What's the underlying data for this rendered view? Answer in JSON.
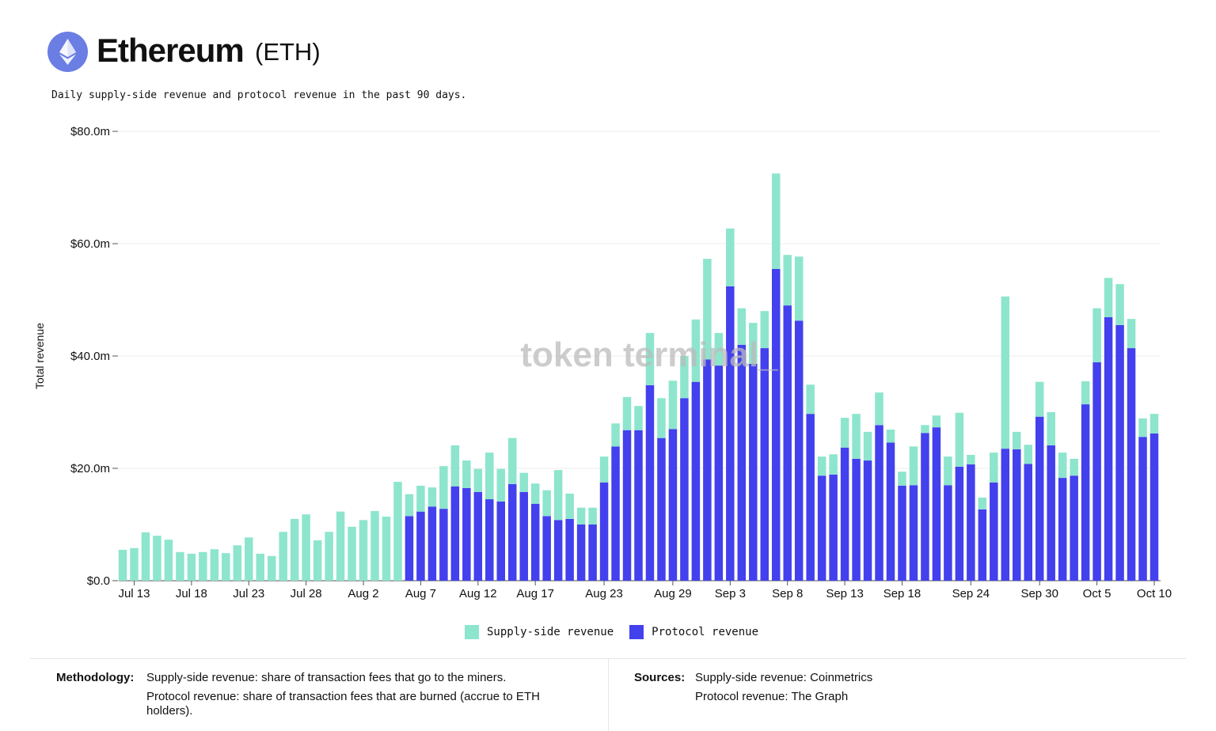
{
  "header": {
    "title": "Ethereum",
    "ticker": "(ETH)",
    "logo_icon": "ethereum-diamond-icon",
    "subtitle": "Daily supply-side revenue and protocol revenue in the past 90 days."
  },
  "watermark": "token terminal_",
  "colors": {
    "supply": "#8de5cd",
    "protocol": "#4340ee",
    "logo": "#6b7ee3"
  },
  "chart_data": {
    "type": "bar",
    "stacked": true,
    "ylabel": "Total revenue",
    "ylim": [
      0,
      80
    ],
    "yticks": [
      "$0.0",
      "$20.0m",
      "$40.0m",
      "$60.0m",
      "$80.0m"
    ],
    "ytick_values": [
      0,
      20,
      40,
      60,
      80
    ],
    "grid": true,
    "legend_position": "bottom",
    "xtick_labels": [
      "Jul 13",
      "Jul 18",
      "Jul 23",
      "Jul 28",
      "Aug 2",
      "Aug 7",
      "Aug 12",
      "Aug 17",
      "Aug 23",
      "Aug 29",
      "Sep 3",
      "Sep 8",
      "Sep 13",
      "Sep 18",
      "Sep 24",
      "Sep 30",
      "Oct 5",
      "Oct 10"
    ],
    "categories": [
      "Jul 12",
      "Jul 13",
      "Jul 14",
      "Jul 15",
      "Jul 16",
      "Jul 17",
      "Jul 18",
      "Jul 19",
      "Jul 20",
      "Jul 21",
      "Jul 22",
      "Jul 23",
      "Jul 24",
      "Jul 25",
      "Jul 26",
      "Jul 27",
      "Jul 28",
      "Jul 29",
      "Jul 30",
      "Jul 31",
      "Aug 1",
      "Aug 2",
      "Aug 3",
      "Aug 4",
      "Aug 5",
      "Aug 6",
      "Aug 7",
      "Aug 8",
      "Aug 9",
      "Aug 10",
      "Aug 11",
      "Aug 12",
      "Aug 13",
      "Aug 14",
      "Aug 15",
      "Aug 16",
      "Aug 17",
      "Aug 18",
      "Aug 19",
      "Aug 20",
      "Aug 21",
      "Aug 22",
      "Aug 23",
      "Aug 24",
      "Aug 25",
      "Aug 26",
      "Aug 27",
      "Aug 28",
      "Aug 29",
      "Aug 30",
      "Aug 31",
      "Sep 1",
      "Sep 2",
      "Sep 3",
      "Sep 4",
      "Sep 5",
      "Sep 6",
      "Sep 7",
      "Sep 8",
      "Sep 9",
      "Sep 10",
      "Sep 11",
      "Sep 12",
      "Sep 13",
      "Sep 14",
      "Sep 15",
      "Sep 16",
      "Sep 17",
      "Sep 18",
      "Sep 19",
      "Sep 20",
      "Sep 21",
      "Sep 22",
      "Sep 23",
      "Sep 24",
      "Sep 25",
      "Sep 26",
      "Sep 27",
      "Sep 28",
      "Sep 29",
      "Sep 30",
      "Oct 1",
      "Oct 2",
      "Oct 3",
      "Oct 4",
      "Oct 5",
      "Oct 6",
      "Oct 7",
      "Oct 8",
      "Oct 9",
      "Oct 10"
    ],
    "series": [
      {
        "name": "Protocol revenue",
        "values": [
          0,
          0,
          0,
          0,
          0,
          0,
          0,
          0,
          0,
          0,
          0,
          0,
          0,
          0,
          0,
          0,
          0,
          0,
          0,
          0,
          0,
          0,
          0,
          0,
          0,
          11.5,
          12.3,
          13.2,
          12.8,
          16.8,
          16.5,
          15.8,
          14.5,
          14.1,
          17.2,
          15.8,
          13.7,
          11.5,
          10.8,
          11.0,
          10.0,
          10.0,
          17.5,
          23.9,
          26.8,
          26.8,
          34.8,
          25.4,
          27.0,
          32.5,
          35.4,
          39.4,
          38.3,
          52.4,
          42.0,
          38.6,
          41.4,
          55.5,
          49.0,
          46.3,
          29.7,
          18.7,
          18.9,
          23.7,
          21.7,
          21.4,
          27.7,
          24.6,
          16.9,
          17.0,
          26.3,
          27.3,
          17.0,
          20.3,
          20.7,
          12.7,
          17.5,
          23.5,
          23.4,
          20.8,
          29.2,
          24.1,
          18.3,
          18.7,
          31.4,
          38.9,
          46.9,
          45.5,
          41.4,
          25.6,
          26.2
        ]
      },
      {
        "name": "Supply-side revenue",
        "values": [
          5.5,
          5.8,
          8.6,
          8.0,
          7.3,
          5.1,
          4.8,
          5.1,
          5.6,
          4.9,
          6.3,
          7.7,
          4.8,
          4.4,
          8.7,
          11.0,
          11.8,
          7.2,
          8.7,
          12.3,
          9.6,
          10.8,
          12.4,
          11.4,
          17.6,
          3.9,
          4.6,
          3.4,
          7.6,
          7.3,
          4.9,
          4.1,
          8.3,
          5.8,
          8.2,
          3.4,
          3.6,
          4.6,
          8.9,
          4.5,
          3.0,
          3.0,
          4.6,
          4.1,
          5.9,
          4.3,
          9.3,
          7.1,
          8.6,
          7.5,
          11.1,
          17.9,
          5.8,
          10.3,
          6.5,
          7.3,
          6.6,
          17.0,
          9.0,
          11.4,
          5.2,
          3.4,
          3.6,
          5.3,
          8.0,
          5.1,
          5.8,
          2.3,
          2.5,
          6.9,
          1.4,
          2.1,
          5.1,
          9.6,
          1.7,
          2.1,
          5.3,
          27.1,
          3.1,
          3.4,
          6.2,
          5.9,
          4.5,
          3.0,
          4.1,
          9.6,
          7.0,
          7.3,
          5.2,
          3.3,
          3.5
        ]
      }
    ]
  },
  "legend": {
    "supply": "Supply-side revenue",
    "protocol": "Protocol revenue"
  },
  "footer": {
    "methodology_label": "Methodology:",
    "methodology_1": "Supply-side revenue: share of transaction fees that go to the miners.",
    "methodology_2": "Protocol revenue: share of transaction fees that are burned (accrue to ETH holders).",
    "sources_label": "Sources:",
    "source_1": "Supply-side revenue: Coinmetrics",
    "source_2": "Protocol revenue: The Graph"
  }
}
